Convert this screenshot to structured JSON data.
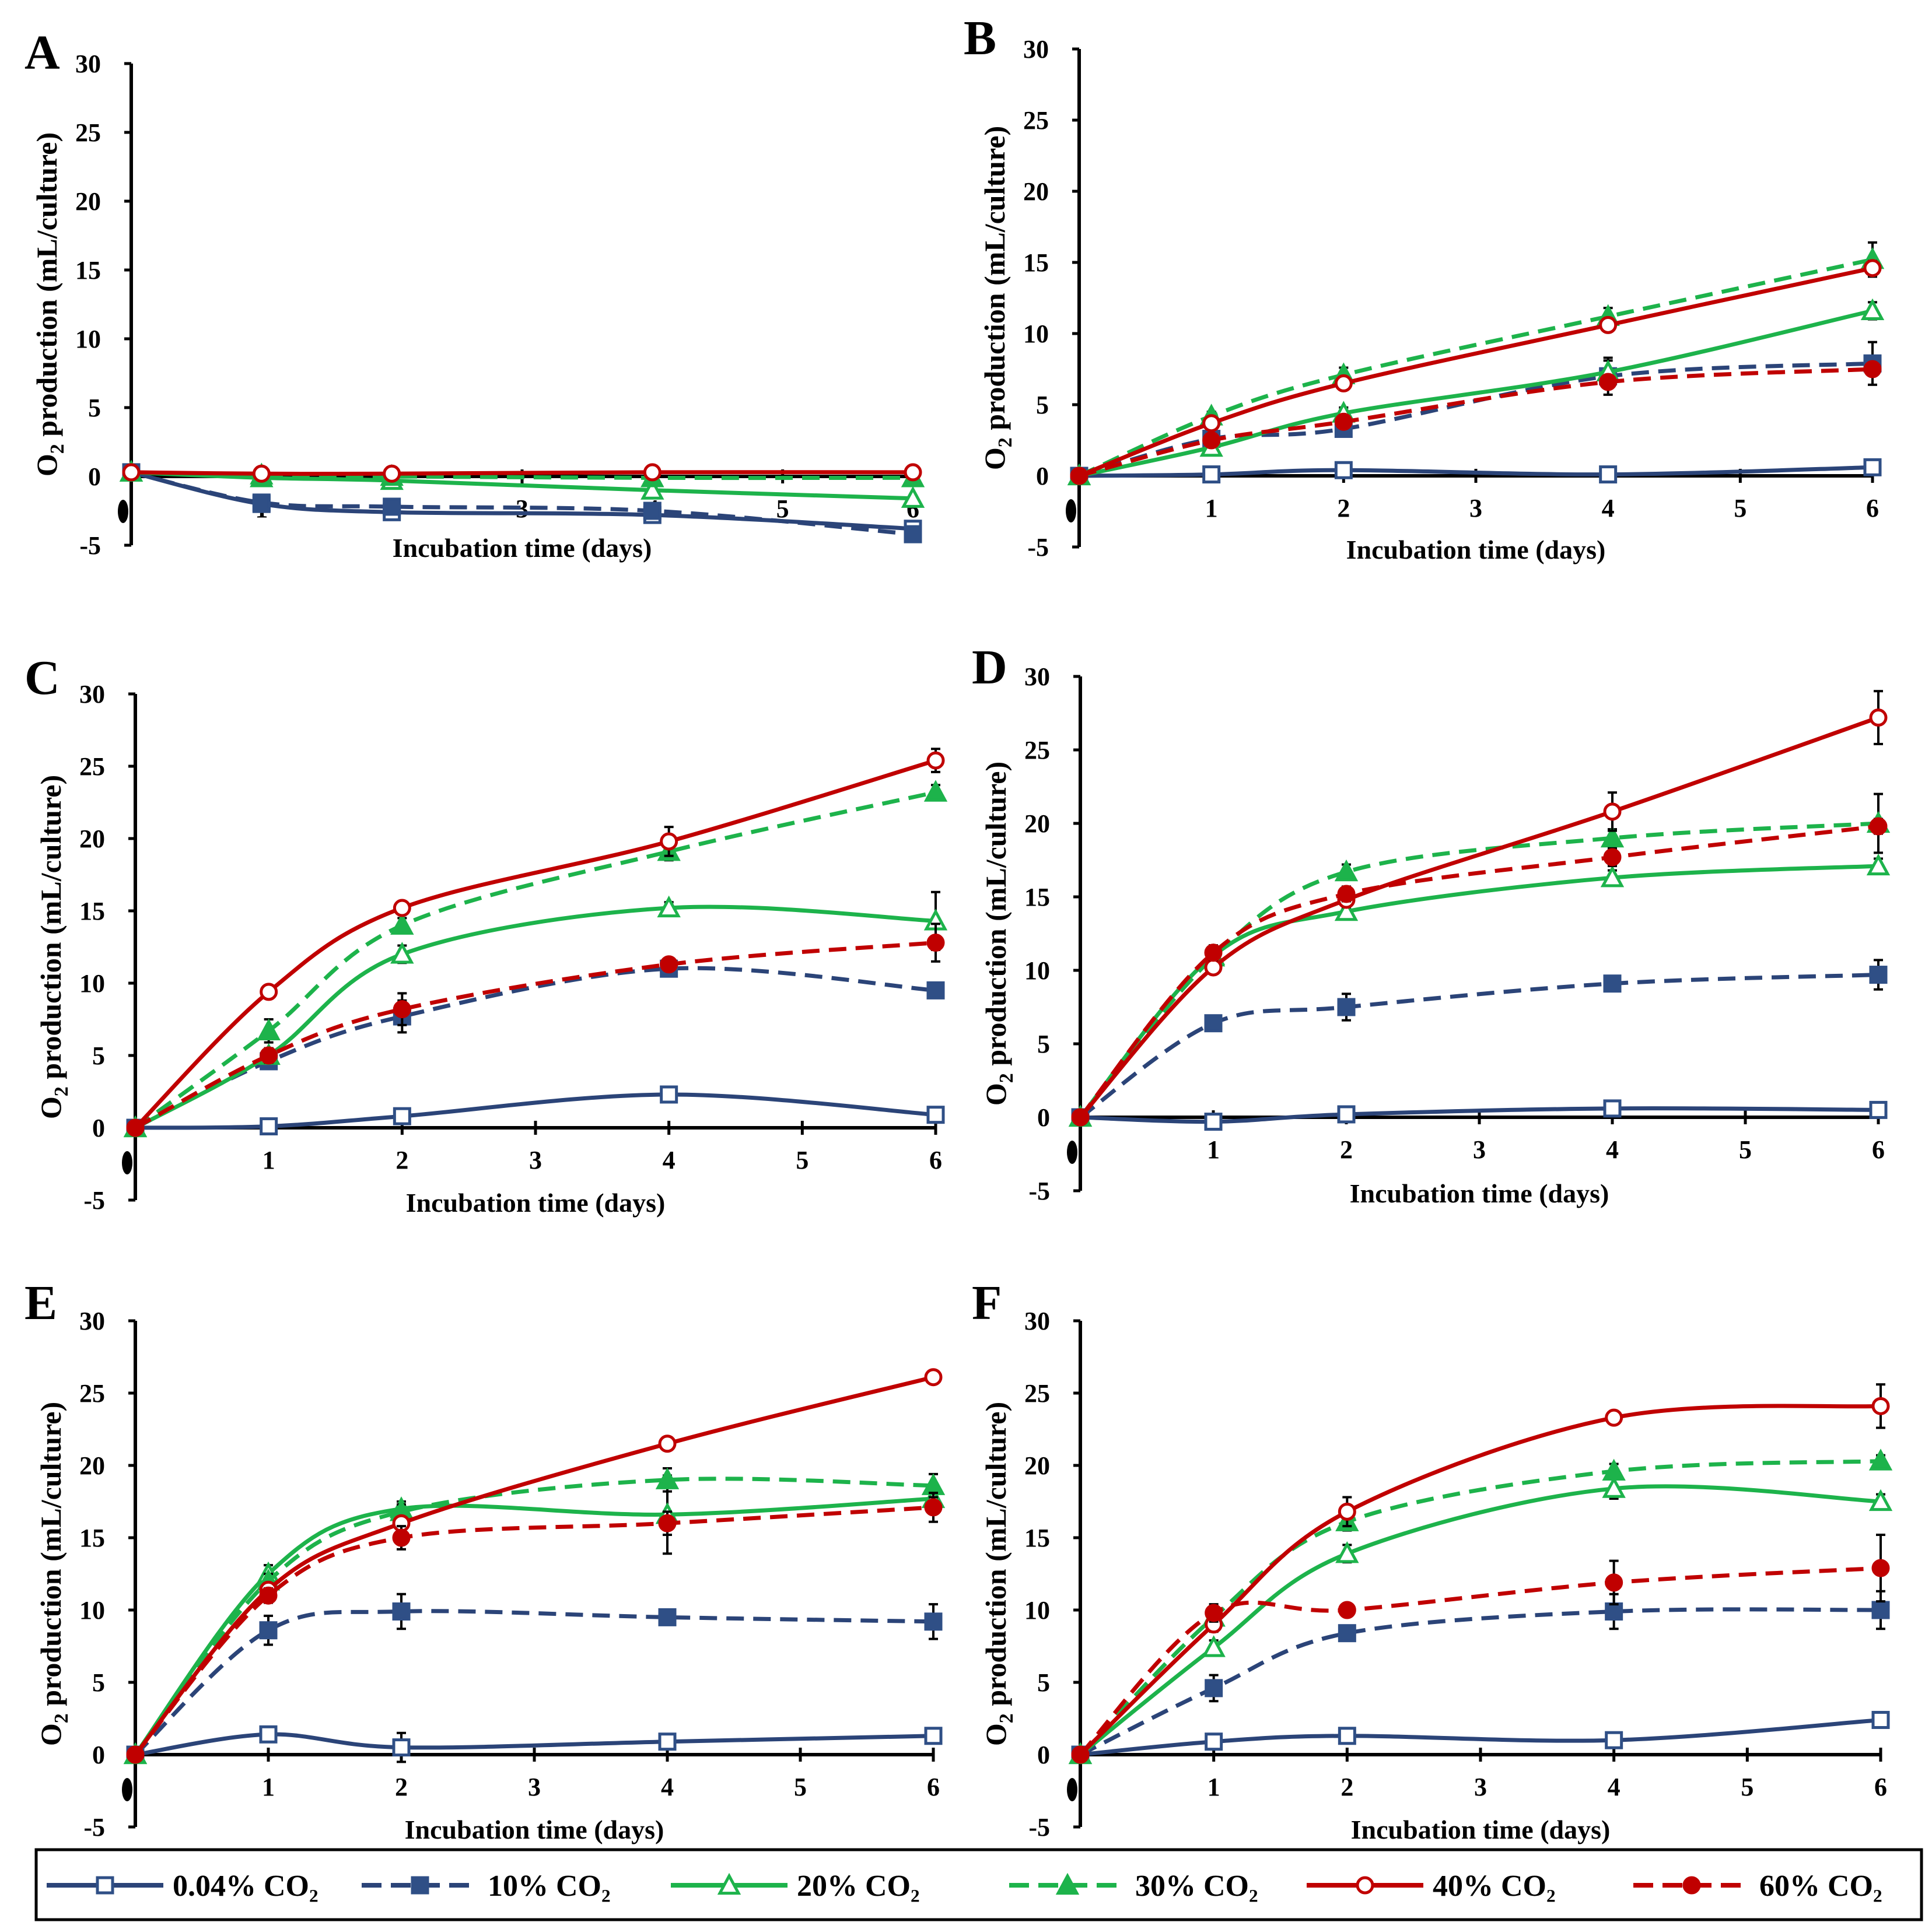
{
  "colors": {
    "navy": "#2B4478",
    "navy_marker": "#2F4F86",
    "green": "#1DB34B",
    "red": "#C00000",
    "axis": "#000000"
  },
  "series_styles": [
    {
      "key": "s004",
      "color_key": "navy",
      "dashed": false,
      "marker": "square-open"
    },
    {
      "key": "s10",
      "color_key": "navy",
      "dashed": true,
      "marker": "square-filled"
    },
    {
      "key": "s20",
      "color_key": "green",
      "dashed": false,
      "marker": "triangle-open"
    },
    {
      "key": "s30",
      "color_key": "green",
      "dashed": true,
      "marker": "triangle-filled"
    },
    {
      "key": "s40",
      "color_key": "red",
      "dashed": false,
      "marker": "circle-open"
    },
    {
      "key": "s60",
      "color_key": "red",
      "dashed": true,
      "marker": "circle-filled"
    }
  ],
  "legend": {
    "items": [
      {
        "series_index": 0,
        "label": "0.04%  CO₂"
      },
      {
        "series_index": 1,
        "label": "10%  CO₂"
      },
      {
        "series_index": 2,
        "label": "20%  CO₂"
      },
      {
        "series_index": 3,
        "label": "30%  CO₂"
      },
      {
        "series_index": 4,
        "label": "40%  CO₂"
      },
      {
        "series_index": 5,
        "label": "60%  CO₂"
      }
    ]
  },
  "chart_data": [
    {
      "panel": "A",
      "type": "line",
      "xlabel": "Incubation time (days)",
      "ylabel_prefix": "O",
      "ylabel_sub": "2",
      "ylabel_suffix": " production (mL/culture)",
      "ylim": [
        -5,
        30
      ],
      "yticks": [
        -5,
        0,
        5,
        10,
        15,
        20,
        25,
        30
      ],
      "xlim": [
        0,
        6
      ],
      "xticks": [
        1,
        2,
        3,
        4,
        5,
        6
      ],
      "x_origin_label": "0",
      "x": [
        0,
        1,
        2,
        4,
        6
      ],
      "series": [
        {
          "name": "0.04%  CO₂",
          "values": [
            0.3,
            -2.0,
            -2.6,
            -2.8,
            -3.8
          ],
          "err": [
            0,
            0.3,
            0.3,
            0.3,
            0.3
          ]
        },
        {
          "name": "10%  CO₂",
          "values": [
            0.3,
            -1.9,
            -2.2,
            -2.5,
            -4.2
          ],
          "err": [
            0,
            0.2,
            0.2,
            0.2,
            0.3
          ]
        },
        {
          "name": "20%  CO₂",
          "values": [
            0.3,
            -0.1,
            -0.3,
            -1.0,
            -1.6
          ],
          "err": [
            0,
            0.2,
            0.2,
            0.2,
            0.2
          ]
        },
        {
          "name": "30%  CO₂",
          "values": [
            0.3,
            0.1,
            0.0,
            -0.1,
            -0.1
          ],
          "err": [
            0,
            0,
            0,
            0,
            0
          ]
        },
        {
          "name": "40%  CO₂",
          "values": [
            0.3,
            0.2,
            0.2,
            0.3,
            0.3
          ],
          "err": [
            0,
            0,
            0,
            0,
            0
          ]
        }
      ]
    },
    {
      "panel": "B",
      "type": "line",
      "xlabel": "Incubation time (days)",
      "ylabel_prefix": "O",
      "ylabel_sub": "2",
      "ylabel_suffix": " production (mL/culture)",
      "ylim": [
        -5,
        30
      ],
      "yticks": [
        -5,
        0,
        5,
        10,
        15,
        20,
        25,
        30
      ],
      "xlim": [
        0,
        6
      ],
      "xticks": [
        1,
        2,
        3,
        4,
        5,
        6
      ],
      "x_origin_label": "0",
      "x": [
        0,
        1,
        2,
        4,
        6
      ],
      "series": [
        {
          "name": "0.04%  CO₂",
          "values": [
            0,
            0.1,
            0.4,
            0.1,
            0.6
          ],
          "err": [
            0,
            0,
            0.3,
            0,
            0
          ]
        },
        {
          "name": "10%  CO₂",
          "values": [
            0,
            2.6,
            3.3,
            7.0,
            7.9
          ],
          "err": [
            0,
            0.4,
            0.4,
            1.3,
            1.5
          ]
        },
        {
          "name": "20%  CO₂",
          "values": [
            0,
            2.0,
            4.4,
            7.3,
            11.6
          ],
          "err": [
            0,
            0.3,
            0.4,
            0.8,
            0.6
          ]
        },
        {
          "name": "30%  CO₂",
          "values": [
            0,
            4.2,
            7.1,
            11.2,
            15.2
          ],
          "err": [
            0,
            0.3,
            0.5,
            0.6,
            1.2
          ]
        },
        {
          "name": "40%  CO₂",
          "values": [
            0,
            3.7,
            6.5,
            10.6,
            14.6
          ],
          "err": [
            0,
            0.3,
            0.3,
            0.4,
            0.5
          ]
        },
        {
          "name": "60%  CO₂",
          "values": [
            0,
            2.5,
            3.8,
            6.6,
            7.5
          ],
          "err": [
            0,
            0.3,
            0.3,
            0.4,
            0.4
          ]
        }
      ]
    },
    {
      "panel": "C",
      "type": "line",
      "xlabel": "Incubation time (days)",
      "ylabel_prefix": "O",
      "ylabel_sub": "2",
      "ylabel_suffix": " production (mL/culture)",
      "ylim": [
        -5,
        30
      ],
      "yticks": [
        -5,
        0,
        5,
        10,
        15,
        20,
        25,
        30
      ],
      "xlim": [
        0,
        6
      ],
      "xticks": [
        1,
        2,
        3,
        4,
        5,
        6
      ],
      "x_origin_label": "0",
      "x": [
        0,
        1,
        2,
        4,
        6
      ],
      "series": [
        {
          "name": "0.04%  CO₂",
          "values": [
            0,
            0.1,
            0.8,
            2.3,
            0.9
          ],
          "err": [
            0,
            0,
            0,
            0,
            0
          ]
        },
        {
          "name": "10%  CO₂",
          "values": [
            0,
            4.6,
            7.7,
            11.0,
            9.5
          ],
          "err": [
            0,
            0.4,
            1.1,
            0.3,
            0.5
          ]
        },
        {
          "name": "20%  CO₂",
          "values": [
            0,
            5.0,
            12.0,
            15.2,
            14.3
          ],
          "err": [
            0,
            0.5,
            0.6,
            0.4,
            2.0
          ]
        },
        {
          "name": "30%  CO₂",
          "values": [
            0,
            6.7,
            14.0,
            19.1,
            23.2
          ],
          "err": [
            0,
            0.8,
            0.5,
            0.6,
            0.5
          ]
        },
        {
          "name": "40%  CO₂",
          "values": [
            0,
            9.4,
            15.2,
            19.8,
            25.4
          ],
          "err": [
            0,
            0.3,
            0.3,
            1.0,
            0.8
          ]
        },
        {
          "name": "60%  CO₂",
          "values": [
            0,
            5.0,
            8.2,
            11.3,
            12.8
          ],
          "err": [
            0,
            0.5,
            1.1,
            0.4,
            1.3
          ]
        }
      ]
    },
    {
      "panel": "D",
      "type": "line",
      "xlabel": "Incubation time (days)",
      "ylabel_prefix": "O",
      "ylabel_sub": "2",
      "ylabel_suffix": " production (mL/culture)",
      "ylim": [
        -5,
        30
      ],
      "yticks": [
        -5,
        0,
        5,
        10,
        15,
        20,
        25,
        30
      ],
      "xlim": [
        0,
        6
      ],
      "xticks": [
        1,
        2,
        3,
        4,
        5,
        6
      ],
      "x_origin_label": "0",
      "x": [
        0,
        1,
        2,
        4,
        6
      ],
      "series": [
        {
          "name": "0.04%  CO₂",
          "values": [
            0,
            -0.3,
            0.2,
            0.6,
            0.5
          ],
          "err": [
            0,
            0,
            0,
            0,
            0
          ]
        },
        {
          "name": "10%  CO₂",
          "values": [
            0,
            6.4,
            7.5,
            9.1,
            9.7
          ],
          "err": [
            0,
            0.4,
            0.9,
            0.5,
            1.0
          ]
        },
        {
          "name": "20%  CO₂",
          "values": [
            0,
            11.0,
            14.0,
            16.3,
            17.1
          ],
          "err": [
            0,
            0.4,
            0.4,
            0.5,
            0.5
          ]
        },
        {
          "name": "30%  CO₂",
          "values": [
            0,
            10.9,
            16.7,
            19.0,
            20.0
          ],
          "err": [
            0,
            0.5,
            0.5,
            0.6,
            2.0
          ]
        },
        {
          "name": "40%  CO₂",
          "values": [
            0,
            10.2,
            14.8,
            20.8,
            27.2
          ],
          "err": [
            0,
            0.4,
            0.5,
            1.3,
            1.8
          ]
        },
        {
          "name": "60%  CO₂",
          "values": [
            0,
            11.2,
            15.2,
            17.7,
            19.8
          ],
          "err": [
            0,
            0.5,
            0.5,
            0.6,
            0.5
          ]
        }
      ]
    },
    {
      "panel": "E",
      "type": "line",
      "xlabel": "Incubation time (days)",
      "ylabel_prefix": "O",
      "ylabel_sub": "2",
      "ylabel_suffix": " production (mL/culture)",
      "ylim": [
        -5,
        30
      ],
      "yticks": [
        -5,
        0,
        5,
        10,
        15,
        20,
        25,
        30
      ],
      "xlim": [
        0,
        6
      ],
      "xticks": [
        1,
        2,
        3,
        4,
        5,
        6
      ],
      "x_origin_label": "0",
      "x": [
        0,
        1,
        2,
        4,
        6
      ],
      "series": [
        {
          "name": "0.04%  CO₂",
          "values": [
            0,
            1.4,
            0.5,
            0.9,
            1.3
          ],
          "err": [
            0,
            0.2,
            1.0,
            0,
            0
          ]
        },
        {
          "name": "10%  CO₂",
          "values": [
            0,
            8.6,
            9.9,
            9.5,
            9.2
          ],
          "err": [
            0,
            1.0,
            1.2,
            0.4,
            1.2
          ]
        },
        {
          "name": "20%  CO₂",
          "values": [
            0,
            12.5,
            17.0,
            16.6,
            17.7
          ],
          "err": [
            0,
            0.6,
            0.5,
            2.7,
            1.0
          ]
        },
        {
          "name": "30%  CO₂",
          "values": [
            0,
            12.0,
            16.8,
            19.0,
            18.6
          ],
          "err": [
            0,
            0.5,
            0.5,
            0.8,
            0.8
          ]
        },
        {
          "name": "40%  CO₂",
          "values": [
            0,
            11.4,
            16.0,
            21.5,
            26.1
          ],
          "err": [
            0,
            0.4,
            0.4,
            0.3,
            0.3
          ]
        },
        {
          "name": "60%  CO₂",
          "values": [
            0,
            11.0,
            15.0,
            16.0,
            17.1
          ],
          "err": [
            0,
            0.5,
            0.8,
            0.8,
            1.0
          ]
        }
      ]
    },
    {
      "panel": "F",
      "type": "line",
      "xlabel": "Incubation time (days)",
      "ylabel_prefix": "O",
      "ylabel_sub": "2",
      "ylabel_suffix": " production (mL/culture)",
      "ylim": [
        -5,
        30
      ],
      "yticks": [
        -5,
        0,
        5,
        10,
        15,
        20,
        25,
        30
      ],
      "xlim": [
        0,
        6
      ],
      "xticks": [
        1,
        2,
        3,
        4,
        5,
        6
      ],
      "x_origin_label": "0",
      "x": [
        0,
        1,
        2,
        4,
        6
      ],
      "series": [
        {
          "name": "0.04%  CO₂",
          "values": [
            0,
            0.9,
            1.3,
            1.0,
            2.4
          ],
          "err": [
            0,
            0,
            0,
            0,
            0
          ]
        },
        {
          "name": "10%  CO₂",
          "values": [
            0,
            4.6,
            8.4,
            9.9,
            10.0
          ],
          "err": [
            0,
            0.9,
            0.4,
            1.2,
            1.3
          ]
        },
        {
          "name": "20%  CO₂",
          "values": [
            0,
            7.4,
            13.9,
            18.4,
            17.5
          ],
          "err": [
            0,
            0.5,
            0.6,
            0.7,
            0.5
          ]
        },
        {
          "name": "30%  CO₂",
          "values": [
            0,
            9.5,
            16.1,
            19.6,
            20.3
          ],
          "err": [
            0,
            0.7,
            0.6,
            0.5,
            0.4
          ]
        },
        {
          "name": "40%  CO₂",
          "values": [
            0,
            9.0,
            16.8,
            23.3,
            24.1
          ],
          "err": [
            0,
            0.5,
            1.0,
            0.3,
            1.5
          ]
        },
        {
          "name": "60%  CO₂",
          "values": [
            0,
            9.8,
            10.0,
            11.9,
            12.9
          ],
          "err": [
            0,
            0.6,
            0.4,
            1.5,
            2.3
          ]
        }
      ]
    }
  ]
}
